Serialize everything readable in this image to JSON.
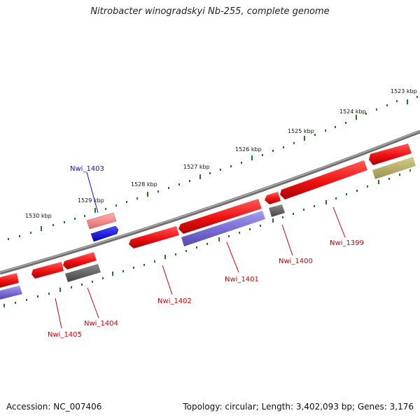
{
  "title": "Nitrobacter winogradskyi Nb-255, complete genome",
  "footer": {
    "accession": "Accession: NC_007406",
    "summary": "Topology: circular; Length: 3,402,093 bp; Genes: 3,176"
  },
  "colors": {
    "backbone": "#7a7a7a",
    "tick": "#1e7a1e",
    "forward_cds": "#ee1111",
    "reverse_cds": "#7b6fd6",
    "rna": "#666666",
    "pseudo": "#b8b06a",
    "highlight": "#1010e0",
    "label_red": "#cc0000",
    "label_blue": "#1010cc"
  },
  "ruler": {
    "labels": [
      "1523 kbp",
      "1524 kbp",
      "1525 kbp",
      "1526 kbp",
      "1527 kbp",
      "1528 kbp",
      "1529 kbp",
      "1530 kbp"
    ]
  },
  "gene_labels": [
    "Nwi_1403",
    "Nwi_1399",
    "Nwi_1400",
    "Nwi_1401",
    "Nwi_1402",
    "Nwi_1404",
    "Nwi_1405"
  ]
}
